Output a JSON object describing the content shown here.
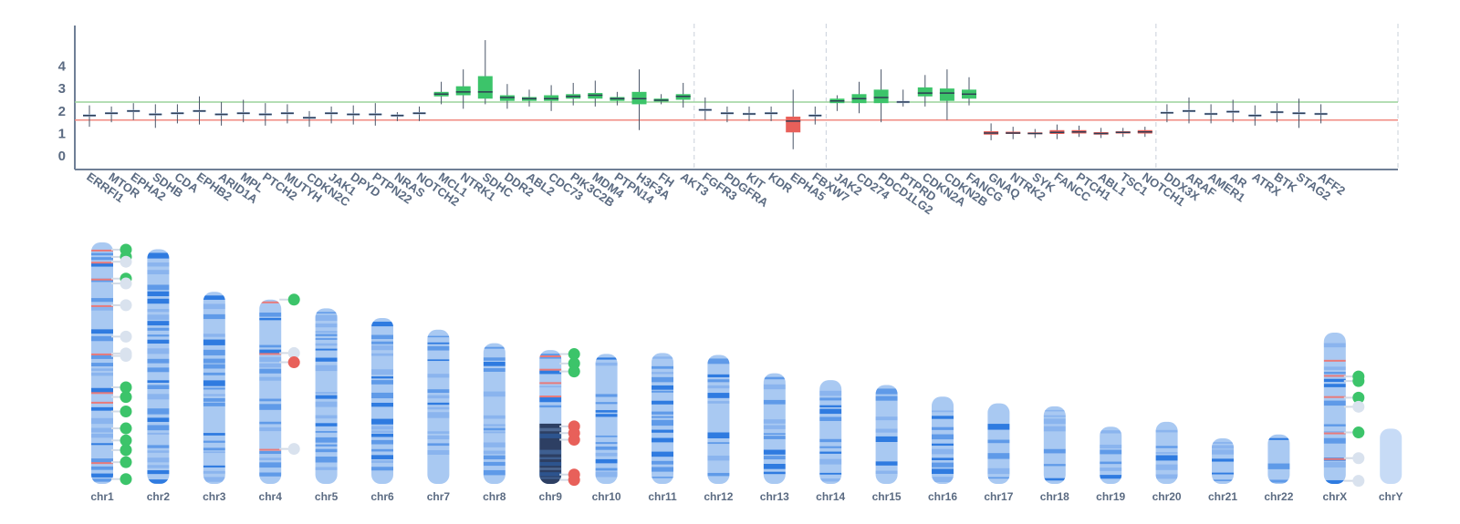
{
  "chart_data": [
    {
      "type": "boxplot",
      "title": "",
      "xlabel": "",
      "ylabel": "",
      "ylim": [
        -0.6,
        5.8
      ],
      "yticks": [
        0,
        1,
        2,
        3,
        4
      ],
      "reference_lines": [
        {
          "name": "upper threshold",
          "value": 2.4,
          "color": "#9bd49b"
        },
        {
          "name": "lower threshold",
          "value": 1.6,
          "color": "#f08a80"
        }
      ],
      "group_separators_after": [
        "AKT3",
        "FBXW7",
        "NOTCH1",
        "AFF2"
      ],
      "colors": {
        "gain": "#3cc46a",
        "loss": "#e8605a",
        "neutral": "#a9c3e6",
        "median": "#2f3e55"
      },
      "genes": [
        {
          "name": "ERRFI1",
          "min": 1.3,
          "q1": 1.75,
          "median": 1.8,
          "q3": 1.85,
          "max": 2.25,
          "status": "neutral"
        },
        {
          "name": "MTOR",
          "min": 1.5,
          "q1": 1.85,
          "median": 1.9,
          "q3": 1.95,
          "max": 2.2,
          "status": "neutral"
        },
        {
          "name": "EPHA2",
          "min": 1.6,
          "q1": 1.95,
          "median": 2.0,
          "q3": 2.05,
          "max": 2.35,
          "status": "neutral"
        },
        {
          "name": "SDHB",
          "min": 1.25,
          "q1": 1.8,
          "median": 1.85,
          "q3": 1.9,
          "max": 2.3,
          "status": "neutral"
        },
        {
          "name": "CDA",
          "min": 1.45,
          "q1": 1.85,
          "median": 1.9,
          "q3": 1.95,
          "max": 2.3,
          "status": "neutral"
        },
        {
          "name": "EPHB2",
          "min": 1.4,
          "q1": 1.95,
          "median": 2.0,
          "q3": 2.05,
          "max": 2.65,
          "status": "neutral"
        },
        {
          "name": "ARID1A",
          "min": 1.35,
          "q1": 1.8,
          "median": 1.85,
          "q3": 1.9,
          "max": 2.4,
          "status": "neutral"
        },
        {
          "name": "MPL",
          "min": 1.5,
          "q1": 1.85,
          "median": 1.9,
          "q3": 1.95,
          "max": 2.5,
          "status": "neutral"
        },
        {
          "name": "PTCH2",
          "min": 1.35,
          "q1": 1.8,
          "median": 1.85,
          "q3": 1.9,
          "max": 2.35,
          "status": "neutral"
        },
        {
          "name": "MUTYH",
          "min": 1.45,
          "q1": 1.85,
          "median": 1.9,
          "q3": 1.95,
          "max": 2.3,
          "status": "neutral"
        },
        {
          "name": "CDKN2C",
          "min": 1.3,
          "q1": 1.65,
          "median": 1.7,
          "q3": 1.75,
          "max": 2.0,
          "status": "neutral"
        },
        {
          "name": "JAK1",
          "min": 1.45,
          "q1": 1.85,
          "median": 1.9,
          "q3": 1.95,
          "max": 2.2,
          "status": "neutral"
        },
        {
          "name": "DPYD",
          "min": 1.4,
          "q1": 1.8,
          "median": 1.85,
          "q3": 1.9,
          "max": 2.25,
          "status": "neutral"
        },
        {
          "name": "PTPN22",
          "min": 1.35,
          "q1": 1.8,
          "median": 1.85,
          "q3": 1.9,
          "max": 2.35,
          "status": "neutral"
        },
        {
          "name": "NRAS",
          "min": 1.55,
          "q1": 1.75,
          "median": 1.8,
          "q3": 1.85,
          "max": 1.95,
          "status": "neutral"
        },
        {
          "name": "NOTCH2",
          "min": 1.55,
          "q1": 1.85,
          "median": 1.9,
          "q3": 1.95,
          "max": 2.2,
          "status": "neutral"
        },
        {
          "name": "MCL1",
          "min": 2.3,
          "q1": 2.65,
          "median": 2.75,
          "q3": 2.85,
          "max": 3.3,
          "status": "gain"
        },
        {
          "name": "NTRK1",
          "min": 2.1,
          "q1": 2.7,
          "median": 2.85,
          "q3": 3.1,
          "max": 3.85,
          "status": "gain"
        },
        {
          "name": "SDHC",
          "min": 2.3,
          "q1": 2.55,
          "median": 2.85,
          "q3": 3.55,
          "max": 5.15,
          "status": "gain"
        },
        {
          "name": "DDR2",
          "min": 2.1,
          "q1": 2.45,
          "median": 2.6,
          "q3": 2.7,
          "max": 3.2,
          "status": "gain"
        },
        {
          "name": "ABL2",
          "min": 2.2,
          "q1": 2.45,
          "median": 2.55,
          "q3": 2.62,
          "max": 2.95,
          "status": "gain"
        },
        {
          "name": "CDC73",
          "min": 2.0,
          "q1": 2.45,
          "median": 2.55,
          "q3": 2.7,
          "max": 3.15,
          "status": "gain"
        },
        {
          "name": "PIK3C2B",
          "min": 2.25,
          "q1": 2.55,
          "median": 2.65,
          "q3": 2.75,
          "max": 3.25,
          "status": "gain"
        },
        {
          "name": "MDM4",
          "min": 2.2,
          "q1": 2.55,
          "median": 2.7,
          "q3": 2.8,
          "max": 3.35,
          "status": "gain"
        },
        {
          "name": "PTPN14",
          "min": 2.25,
          "q1": 2.45,
          "median": 2.55,
          "q3": 2.62,
          "max": 2.85,
          "status": "gain"
        },
        {
          "name": "H3F3A",
          "min": 1.15,
          "q1": 2.3,
          "median": 2.55,
          "q3": 2.85,
          "max": 3.85,
          "status": "gain"
        },
        {
          "name": "FH",
          "min": 2.3,
          "q1": 2.42,
          "median": 2.48,
          "q3": 2.55,
          "max": 2.75,
          "status": "gain"
        },
        {
          "name": "AKT3",
          "min": 2.15,
          "q1": 2.5,
          "median": 2.65,
          "q3": 2.75,
          "max": 3.25,
          "status": "gain"
        },
        {
          "name": "FGFR3",
          "min": 1.6,
          "q1": 2.0,
          "median": 2.05,
          "q3": 2.1,
          "max": 2.6,
          "status": "neutral"
        },
        {
          "name": "PDGFRA",
          "min": 1.5,
          "q1": 1.85,
          "median": 1.9,
          "q3": 1.95,
          "max": 2.2,
          "status": "neutral"
        },
        {
          "name": "KIT",
          "min": 1.55,
          "q1": 1.82,
          "median": 1.87,
          "q3": 1.92,
          "max": 2.2,
          "status": "neutral"
        },
        {
          "name": "KDR",
          "min": 1.55,
          "q1": 1.85,
          "median": 1.9,
          "q3": 1.95,
          "max": 2.2,
          "status": "neutral"
        },
        {
          "name": "EPHA5",
          "min": 0.3,
          "q1": 1.05,
          "median": 1.55,
          "q3": 1.75,
          "max": 2.95,
          "status": "loss"
        },
        {
          "name": "FBXW7",
          "min": 1.4,
          "q1": 1.75,
          "median": 1.8,
          "q3": 1.85,
          "max": 2.2,
          "status": "neutral"
        },
        {
          "name": "JAK2",
          "min": 2.0,
          "q1": 2.35,
          "median": 2.45,
          "q3": 2.55,
          "max": 2.7,
          "status": "gain"
        },
        {
          "name": "CD274",
          "min": 1.9,
          "q1": 2.35,
          "median": 2.55,
          "q3": 2.75,
          "max": 3.3,
          "status": "gain"
        },
        {
          "name": "PDCD1LG2",
          "min": 1.5,
          "q1": 2.35,
          "median": 2.6,
          "q3": 2.95,
          "max": 3.85,
          "status": "gain"
        },
        {
          "name": "PTPRD",
          "min": 2.2,
          "q1": 2.35,
          "median": 2.4,
          "q3": 2.45,
          "max": 2.95,
          "status": "neutral"
        },
        {
          "name": "CDKN2A",
          "min": 2.2,
          "q1": 2.65,
          "median": 2.8,
          "q3": 3.05,
          "max": 3.6,
          "status": "gain"
        },
        {
          "name": "CDKN2B",
          "min": 1.6,
          "q1": 2.45,
          "median": 2.8,
          "q3": 3.0,
          "max": 3.85,
          "status": "gain"
        },
        {
          "name": "FANCG",
          "min": 2.25,
          "q1": 2.55,
          "median": 2.75,
          "q3": 2.95,
          "max": 3.5,
          "status": "gain"
        },
        {
          "name": "GNAQ",
          "min": 0.7,
          "q1": 0.95,
          "median": 1.02,
          "q3": 1.1,
          "max": 1.45,
          "status": "loss"
        },
        {
          "name": "NTRK2",
          "min": 0.75,
          "q1": 0.98,
          "median": 1.02,
          "q3": 1.08,
          "max": 1.3,
          "status": "loss"
        },
        {
          "name": "SYK",
          "min": 0.8,
          "q1": 0.97,
          "median": 1.0,
          "q3": 1.05,
          "max": 1.2,
          "status": "loss"
        },
        {
          "name": "FANCC",
          "min": 0.75,
          "q1": 0.98,
          "median": 1.05,
          "q3": 1.15,
          "max": 1.4,
          "status": "loss"
        },
        {
          "name": "PTCH1",
          "min": 0.85,
          "q1": 1.0,
          "median": 1.07,
          "q3": 1.15,
          "max": 1.35,
          "status": "loss"
        },
        {
          "name": "ABL1",
          "min": 0.8,
          "q1": 0.95,
          "median": 1.0,
          "q3": 1.06,
          "max": 1.25,
          "status": "loss"
        },
        {
          "name": "TSC1",
          "min": 0.85,
          "q1": 1.0,
          "median": 1.05,
          "q3": 1.1,
          "max": 1.25,
          "status": "loss"
        },
        {
          "name": "NOTCH1",
          "min": 0.85,
          "q1": 1.0,
          "median": 1.07,
          "q3": 1.15,
          "max": 1.3,
          "status": "loss"
        },
        {
          "name": "DDX3X",
          "min": 1.5,
          "q1": 1.88,
          "median": 1.92,
          "q3": 1.97,
          "max": 2.3,
          "status": "neutral"
        },
        {
          "name": "ARAF",
          "min": 1.45,
          "q1": 1.95,
          "median": 2.0,
          "q3": 2.05,
          "max": 2.6,
          "status": "neutral"
        },
        {
          "name": "AMER1",
          "min": 1.45,
          "q1": 1.82,
          "median": 1.87,
          "q3": 1.92,
          "max": 2.3,
          "status": "neutral"
        },
        {
          "name": "AR",
          "min": 1.5,
          "q1": 1.92,
          "median": 1.97,
          "q3": 2.02,
          "max": 2.5,
          "status": "neutral"
        },
        {
          "name": "ATRX",
          "min": 1.35,
          "q1": 1.75,
          "median": 1.8,
          "q3": 1.85,
          "max": 2.25,
          "status": "neutral"
        },
        {
          "name": "BTK",
          "min": 1.5,
          "q1": 1.9,
          "median": 1.95,
          "q3": 2.0,
          "max": 2.35,
          "status": "neutral"
        },
        {
          "name": "STAG2",
          "min": 1.25,
          "q1": 1.85,
          "median": 1.9,
          "q3": 1.95,
          "max": 2.55,
          "status": "neutral"
        },
        {
          "name": "AFF2",
          "min": 1.45,
          "q1": 1.82,
          "median": 1.87,
          "q3": 1.92,
          "max": 2.3,
          "status": "neutral"
        }
      ]
    },
    {
      "type": "ideogram",
      "title": "",
      "colors": {
        "gain": "#3cc46a",
        "loss": "#e8605a",
        "neutral": "#d9e2ee",
        "band_light": "#a9c9f2",
        "band_dark": "#2f7be0",
        "band_mid": "#5f9ae8",
        "highlight": "#e87a7a"
      },
      "chromosomes": [
        {
          "name": "chr1",
          "length": 249,
          "seed": 11,
          "markers": [
            {
              "pos": 0.03,
              "status": "gain"
            },
            {
              "pos": 0.06,
              "status": "gain"
            },
            {
              "pos": 0.08,
              "status": "neutral"
            },
            {
              "pos": 0.15,
              "status": "gain"
            },
            {
              "pos": 0.17,
              "status": "neutral"
            },
            {
              "pos": 0.26,
              "status": "neutral"
            },
            {
              "pos": 0.39,
              "status": "neutral"
            },
            {
              "pos": 0.46,
              "status": "neutral"
            },
            {
              "pos": 0.47,
              "status": "neutral"
            },
            {
              "pos": 0.6,
              "status": "gain"
            },
            {
              "pos": 0.64,
              "status": "gain"
            },
            {
              "pos": 0.7,
              "status": "gain"
            },
            {
              "pos": 0.77,
              "status": "gain"
            },
            {
              "pos": 0.82,
              "status": "gain"
            },
            {
              "pos": 0.86,
              "status": "gain"
            },
            {
              "pos": 0.91,
              "status": "gain"
            },
            {
              "pos": 0.98,
              "status": "gain"
            }
          ],
          "highlights": [
            0.03,
            0.08,
            0.15,
            0.26,
            0.46,
            0.62,
            0.66,
            0.91
          ]
        },
        {
          "name": "chr2",
          "length": 242,
          "seed": 23,
          "markers": [],
          "highlights": []
        },
        {
          "name": "chr3",
          "length": 198,
          "seed": 37,
          "markers": [],
          "highlights": []
        },
        {
          "name": "chr4",
          "length": 190,
          "seed": 41,
          "markers": [
            {
              "pos": 0.0,
              "status": "gain"
            },
            {
              "pos": 0.29,
              "status": "neutral"
            },
            {
              "pos": 0.34,
              "status": "loss"
            },
            {
              "pos": 0.81,
              "status": "neutral"
            }
          ],
          "highlights": [
            0.01,
            0.29,
            0.81
          ]
        },
        {
          "name": "chr5",
          "length": 181,
          "seed": 53,
          "markers": [],
          "highlights": []
        },
        {
          "name": "chr6",
          "length": 171,
          "seed": 67,
          "markers": [],
          "highlights": []
        },
        {
          "name": "chr7",
          "length": 159,
          "seed": 71,
          "markers": [],
          "highlights": []
        },
        {
          "name": "chr8",
          "length": 145,
          "seed": 83,
          "markers": [],
          "highlights": []
        },
        {
          "name": "chr9",
          "length": 138,
          "seed": 97,
          "markers": [
            {
              "pos": 0.03,
              "status": "gain"
            },
            {
              "pos": 0.1,
              "status": "gain"
            },
            {
              "pos": 0.16,
              "status": "gain"
            },
            {
              "pos": 0.57,
              "status": "loss"
            },
            {
              "pos": 0.62,
              "status": "loss"
            },
            {
              "pos": 0.67,
              "status": "loss"
            },
            {
              "pos": 0.93,
              "status": "loss"
            },
            {
              "pos": 0.97,
              "status": "loss"
            }
          ],
          "highlights": [
            0.04,
            0.14,
            0.24,
            0.34
          ],
          "dark_region": [
            0.55,
            1.0
          ]
        },
        {
          "name": "chr10",
          "length": 134,
          "seed": 101,
          "markers": [],
          "highlights": []
        },
        {
          "name": "chr11",
          "length": 135,
          "seed": 113,
          "markers": [],
          "highlights": []
        },
        {
          "name": "chr12",
          "length": 133,
          "seed": 127,
          "markers": [],
          "highlights": []
        },
        {
          "name": "chr13",
          "length": 114,
          "seed": 131,
          "markers": [],
          "highlights": []
        },
        {
          "name": "chr14",
          "length": 107,
          "seed": 149,
          "markers": [],
          "highlights": []
        },
        {
          "name": "chr15",
          "length": 102,
          "seed": 151,
          "markers": [],
          "highlights": []
        },
        {
          "name": "chr16",
          "length": 90,
          "seed": 163,
          "markers": [],
          "highlights": []
        },
        {
          "name": "chr17",
          "length": 83,
          "seed": 173,
          "markers": [],
          "highlights": []
        },
        {
          "name": "chr18",
          "length": 80,
          "seed": 181,
          "markers": [],
          "highlights": []
        },
        {
          "name": "chr19",
          "length": 59,
          "seed": 191,
          "markers": [],
          "highlights": []
        },
        {
          "name": "chr20",
          "length": 64,
          "seed": 197,
          "markers": [],
          "highlights": []
        },
        {
          "name": "chr21",
          "length": 47,
          "seed": 211,
          "markers": [],
          "highlights": []
        },
        {
          "name": "chr22",
          "length": 51,
          "seed": 223,
          "markers": [],
          "highlights": []
        },
        {
          "name": "chrX",
          "length": 156,
          "seed": 227,
          "markers": [
            {
              "pos": 0.29,
              "status": "gain"
            },
            {
              "pos": 0.32,
              "status": "gain"
            },
            {
              "pos": 0.43,
              "status": "gain"
            },
            {
              "pos": 0.49,
              "status": "neutral"
            },
            {
              "pos": 0.66,
              "status": "gain"
            },
            {
              "pos": 0.83,
              "status": "neutral"
            },
            {
              "pos": 0.98,
              "status": "neutral"
            }
          ],
          "highlights": [
            0.18,
            0.28,
            0.42,
            0.66,
            0.83
          ]
        },
        {
          "name": "chrY",
          "length": 57,
          "seed": 233,
          "markers": [],
          "highlights": [],
          "sparse": true
        }
      ]
    }
  ]
}
